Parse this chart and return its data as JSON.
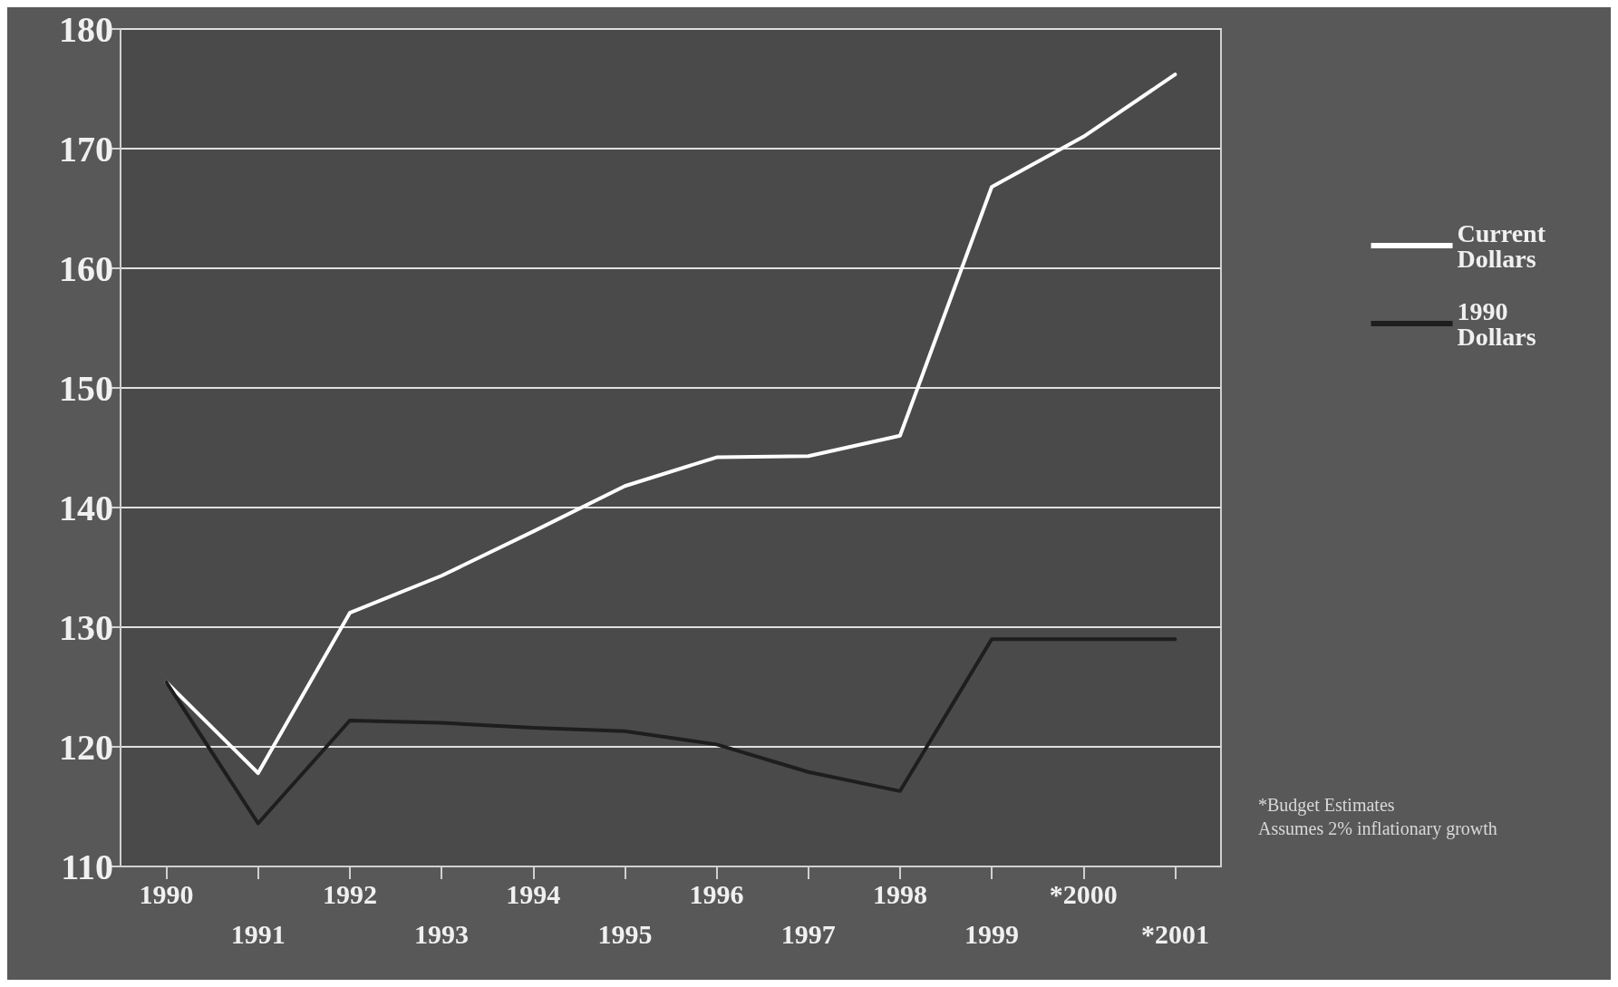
{
  "chart_data": {
    "type": "line",
    "categories": [
      "1990",
      "1991",
      "1992",
      "1993",
      "1994",
      "1995",
      "1996",
      "1997",
      "1998",
      "1999",
      "*2000",
      "*2001"
    ],
    "series": [
      {
        "name": "Current Dollars",
        "color": "#ffffff",
        "values": [
          125.4,
          117.8,
          131.2,
          134.3,
          138,
          141.8,
          144.2,
          144.3,
          146,
          166.8,
          171,
          176.2
        ]
      },
      {
        "name": "1990 Dollars",
        "color": "#1e1e1e",
        "values": [
          125.4,
          113.6,
          122.2,
          122,
          121.6,
          121.3,
          120.2,
          117.9,
          116.3,
          129,
          129,
          129
        ]
      }
    ],
    "ylim": [
      110,
      180
    ],
    "yticks": [
      110,
      120,
      130,
      140,
      150,
      160,
      170,
      180
    ],
    "grid": "y",
    "legend": "right",
    "marker": "none",
    "line_style": "solid",
    "annotations": [
      "*Budget Estimates",
      "Assumes 2% inflationary growth"
    ]
  }
}
